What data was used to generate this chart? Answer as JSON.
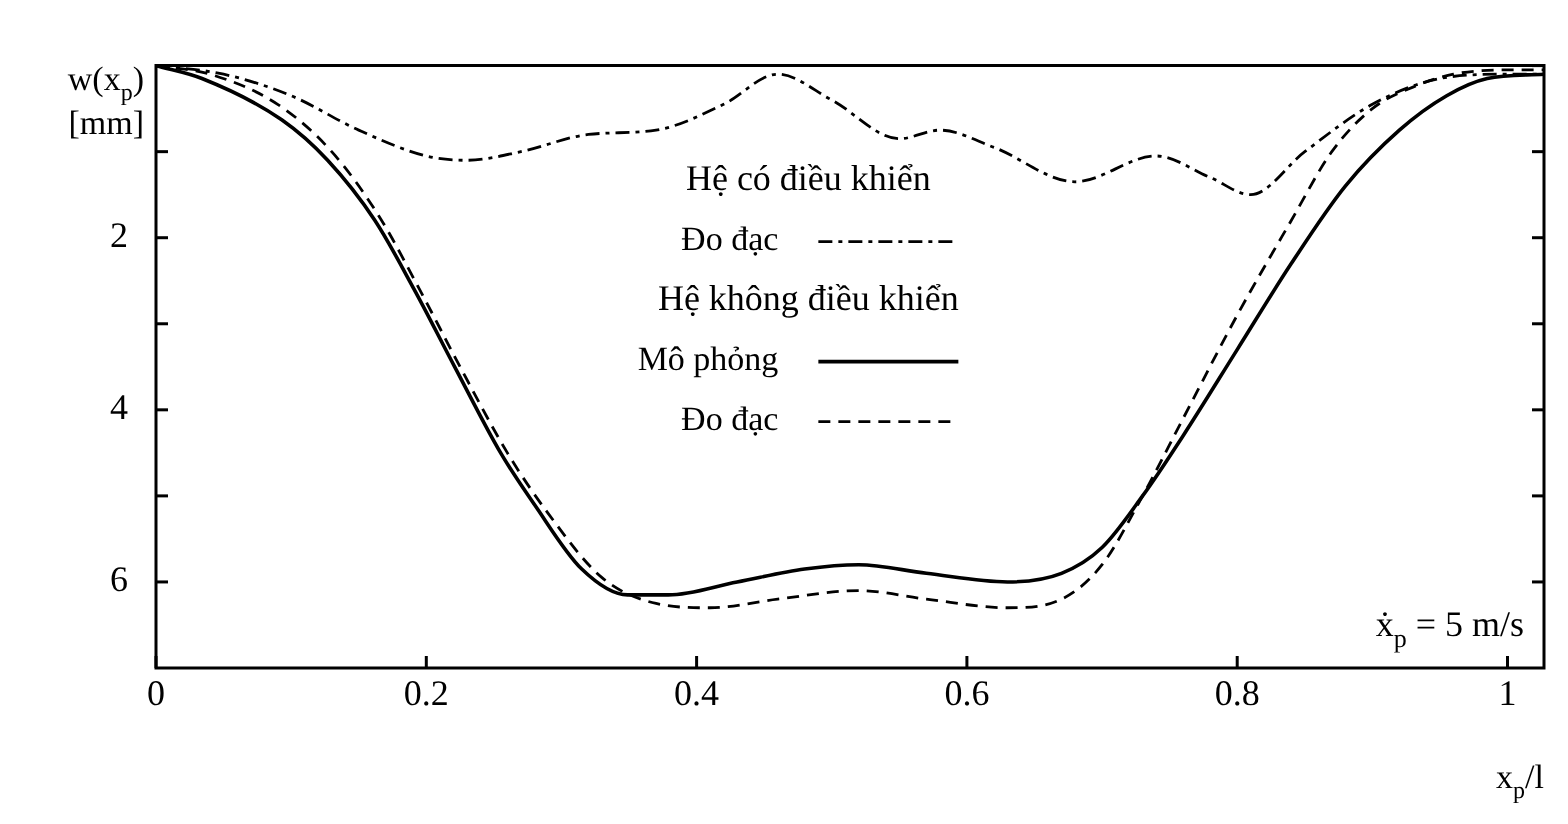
{
  "chart_data": {
    "type": "line",
    "xlabel": "x$_{p}$/l",
    "ylabel": "w(x$_{p}$) [mm]",
    "xlim": [
      0,
      1.027
    ],
    "xticks": [
      0,
      0.2,
      0.4,
      0.6,
      0.8,
      1
    ],
    "ylim": [
      7,
      0
    ],
    "yticks": [
      {
        "value": 0,
        "label": null
      },
      {
        "value": 1,
        "label": null
      },
      2,
      {
        "value": 3,
        "label": null
      },
      4,
      {
        "value": 5,
        "label": null
      },
      6
    ],
    "grid": false,
    "legend": "top",
    "marker": "none",
    "annotations": [
      "Hệ có điều khiển",
      "Hệ không điều khiển",
      "ẋ$_{p}$ = 5 m/s"
    ],
    "series": [
      {
        "name": "Đo đạc",
        "color": "#000000",
        "line_style": "dashdot",
        "x": [
          0,
          0.05,
          0.1,
          0.15,
          0.2,
          0.23,
          0.27,
          0.32,
          0.37,
          0.42,
          0.46,
          0.5,
          0.55,
          0.58,
          0.62,
          0.68,
          0.74,
          0.78,
          0.81,
          0.85,
          0.9,
          0.95,
          1.0,
          1.027
        ],
        "values": [
          0,
          0.1,
          0.35,
          0.75,
          1.05,
          1.1,
          1.0,
          0.8,
          0.75,
          0.45,
          0.1,
          0.4,
          0.85,
          0.75,
          0.95,
          1.35,
          1.05,
          1.3,
          1.5,
          1.0,
          0.45,
          0.15,
          0.1,
          0.1
        ]
      },
      {
        "name": "Mô phỏng",
        "color": "#000000",
        "line_style": "solid",
        "x": [
          0,
          0.034,
          0.093,
          0.127,
          0.162,
          0.191,
          0.221,
          0.255,
          0.28,
          0.315,
          0.349,
          0.379,
          0.43,
          0.48,
          0.52,
          0.57,
          0.63,
          0.67,
          0.7,
          0.73,
          0.76,
          0.8,
          0.84,
          0.88,
          0.92,
          0.955,
          0.985,
          1.027
        ],
        "values": [
          0,
          0.15,
          0.63,
          1.1,
          1.8,
          2.6,
          3.5,
          4.5,
          5.1,
          5.85,
          6.15,
          6.15,
          6.0,
          5.85,
          5.8,
          5.9,
          6.0,
          5.9,
          5.6,
          5.0,
          4.3,
          3.3,
          2.3,
          1.4,
          0.75,
          0.35,
          0.15,
          0.1
        ]
      },
      {
        "name": "Đo đạc",
        "color": "#000000",
        "line_style": "dashed",
        "x": [
          0,
          0.04,
          0.09,
          0.13,
          0.165,
          0.195,
          0.225,
          0.26,
          0.29,
          0.33,
          0.37,
          0.41,
          0.46,
          0.52,
          0.57,
          0.63,
          0.67,
          0.7,
          0.73,
          0.76,
          0.8,
          0.84,
          0.87,
          0.9,
          0.93,
          0.96,
          1.0,
          1.027
        ],
        "values": [
          0,
          0.1,
          0.45,
          1.0,
          1.75,
          2.6,
          3.5,
          4.5,
          5.2,
          5.95,
          6.25,
          6.3,
          6.2,
          6.1,
          6.2,
          6.3,
          6.2,
          5.8,
          5.0,
          4.1,
          2.9,
          1.8,
          1.0,
          0.5,
          0.25,
          0.1,
          0.05,
          0.05
        ]
      }
    ]
  }
}
